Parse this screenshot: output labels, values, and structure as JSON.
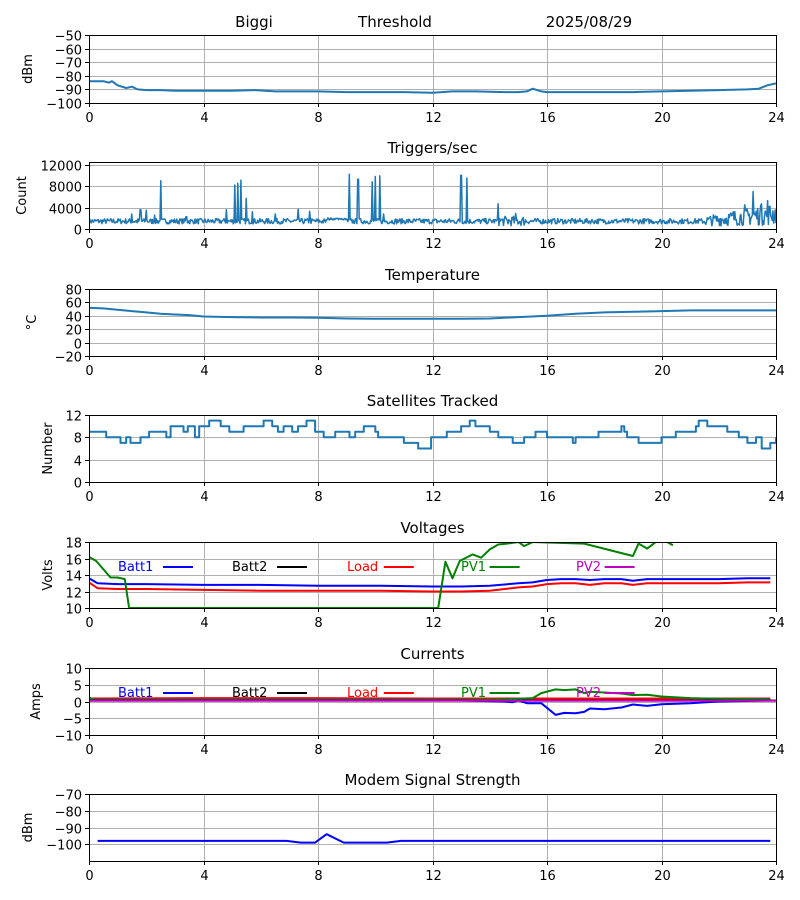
{
  "header": {
    "station": "Biggi",
    "mode": "Threshold",
    "date": "2025/08/29"
  },
  "chart_data": [
    {
      "id": "signal",
      "type": "line",
      "title": "",
      "xlabel": "",
      "ylabel": "dBm",
      "xlim": [
        0,
        24
      ],
      "ylim": [
        -100,
        -50
      ],
      "xticks": [
        "0",
        "4",
        "8",
        "12",
        "16",
        "20",
        "24"
      ],
      "yticks": [
        "−50",
        "−60",
        "−70",
        "−80",
        "−90",
        "−100"
      ],
      "ytick_values": [
        -50,
        -60,
        -70,
        -80,
        -90,
        -100
      ],
      "grid": true,
      "series": [
        {
          "name": "signal",
          "color": "#1f77b4",
          "x": [
            0,
            0.5,
            0.7,
            0.8,
            1.0,
            1.3,
            1.5,
            1.7,
            2.0,
            2.5,
            3.0,
            4.0,
            5.0,
            5.8,
            6.5,
            8.0,
            9.0,
            10.0,
            11.0,
            12.0,
            12.7,
            13.5,
            14.5,
            15.0,
            15.3,
            15.5,
            15.8,
            16.0,
            17.0,
            18.0,
            19.0,
            20.0,
            21.0,
            22.0,
            23.0,
            23.4,
            23.7,
            24.0
          ],
          "y": [
            -84,
            -84,
            -85,
            -84,
            -87,
            -89,
            -88,
            -90,
            -90.5,
            -90.5,
            -91,
            -91,
            -91,
            -90.5,
            -91.5,
            -91.5,
            -92,
            -92,
            -92,
            -92.5,
            -91.5,
            -91.5,
            -92,
            -92,
            -91.5,
            -89.5,
            -91.5,
            -92,
            -92,
            -92,
            -92,
            -91.5,
            -91,
            -90.5,
            -90,
            -89.5,
            -87,
            -85.5
          ]
        }
      ]
    },
    {
      "id": "triggers",
      "type": "line",
      "title": "Triggers/sec",
      "xlabel": "",
      "ylabel": "Count",
      "xlim": [
        0,
        24
      ],
      "ylim": [
        0,
        12500
      ],
      "xticks": [
        "0",
        "4",
        "8",
        "12",
        "16",
        "20",
        "24"
      ],
      "yticks": [
        "12000",
        "8000",
        "4000",
        "0"
      ],
      "ytick_values": [
        12000,
        8000,
        4000,
        0
      ],
      "grid": true,
      "series": [
        {
          "name": "triggers",
          "color": "#1f77b4",
          "baseline": 1400,
          "spikes": [
            {
              "x": 1.5,
              "y": 2800
            },
            {
              "x": 1.8,
              "y": 3600
            },
            {
              "x": 2.0,
              "y": 3500
            },
            {
              "x": 2.3,
              "y": 2600
            },
            {
              "x": 2.5,
              "y": 9000
            },
            {
              "x": 3.4,
              "y": 2300
            },
            {
              "x": 4.8,
              "y": 3600
            },
            {
              "x": 5.1,
              "y": 8200
            },
            {
              "x": 5.2,
              "y": 8500
            },
            {
              "x": 5.3,
              "y": 9100
            },
            {
              "x": 5.5,
              "y": 5700
            },
            {
              "x": 5.7,
              "y": 3200
            },
            {
              "x": 6.5,
              "y": 2800
            },
            {
              "x": 7.3,
              "y": 3700
            },
            {
              "x": 7.7,
              "y": 3300
            },
            {
              "x": 9.1,
              "y": 10200
            },
            {
              "x": 9.4,
              "y": 9300
            },
            {
              "x": 9.9,
              "y": 8800
            },
            {
              "x": 10.0,
              "y": 9800
            },
            {
              "x": 10.15,
              "y": 9900
            },
            {
              "x": 10.3,
              "y": 2800
            },
            {
              "x": 13.0,
              "y": 10000
            },
            {
              "x": 13.2,
              "y": 9500
            },
            {
              "x": 14.3,
              "y": 4700
            },
            {
              "x": 14.9,
              "y": 2900
            },
            {
              "x": 22.5,
              "y": 3200
            },
            {
              "x": 22.9,
              "y": 4500
            },
            {
              "x": 23.2,
              "y": 7000
            },
            {
              "x": 23.5,
              "y": 4700
            },
            {
              "x": 23.7,
              "y": 5300
            }
          ]
        }
      ]
    },
    {
      "id": "temperature",
      "type": "line",
      "title": "Temperature",
      "xlabel": "",
      "ylabel": "°C",
      "xlim": [
        0,
        24
      ],
      "ylim": [
        -20,
        80
      ],
      "xticks": [
        "0",
        "4",
        "8",
        "12",
        "16",
        "20",
        "24"
      ],
      "yticks": [
        "80",
        "60",
        "40",
        "20",
        "0",
        "−20"
      ],
      "ytick_values": [
        80,
        60,
        40,
        20,
        0,
        -20
      ],
      "grid": true,
      "series": [
        {
          "name": "temperature",
          "color": "#1f77b4",
          "x": [
            0,
            0.5,
            1,
            1.5,
            2,
            2.5,
            3,
            3.5,
            4,
            5,
            6,
            7,
            8,
            9,
            10,
            11,
            12,
            13,
            14,
            15,
            16,
            17,
            18,
            19,
            20,
            21,
            22,
            23,
            24
          ],
          "y": [
            52,
            51,
            49,
            47,
            45,
            43,
            42,
            41,
            39,
            38,
            37.5,
            37.5,
            37,
            36,
            35.5,
            35.5,
            35.5,
            35.5,
            36,
            38,
            40,
            43,
            45,
            46,
            47,
            48,
            48,
            48,
            48
          ]
        }
      ]
    },
    {
      "id": "satellites",
      "type": "line",
      "title": "Satellites Tracked",
      "xlabel": "",
      "ylabel": "Number",
      "xlim": [
        0,
        24
      ],
      "ylim": [
        0,
        12
      ],
      "xticks": [
        "0",
        "4",
        "8",
        "12",
        "16",
        "20",
        "24"
      ],
      "yticks": [
        "12",
        "8",
        "4",
        "0"
      ],
      "ytick_values": [
        12,
        8,
        4,
        0
      ],
      "grid": true,
      "series": [
        {
          "name": "satellites",
          "color": "#1f77b4",
          "step": true,
          "x": [
            0,
            0.6,
            1.1,
            1.3,
            1.45,
            1.8,
            2.1,
            2.7,
            2.85,
            3.3,
            3.45,
            3.7,
            3.85,
            4.2,
            4.6,
            4.9,
            5.4,
            6.1,
            6.4,
            6.6,
            6.8,
            7.1,
            7.3,
            7.6,
            7.9,
            8.2,
            8.6,
            9.1,
            9.3,
            9.6,
            10.0,
            10.1,
            10.7,
            11.0,
            11.3,
            11.5,
            11.95,
            12.5,
            13.0,
            13.3,
            13.5,
            14.0,
            14.3,
            14.8,
            15.2,
            15.6,
            16.0,
            16.9,
            17.0,
            17.8,
            18.6,
            18.7,
            18.8,
            19.2,
            19.8,
            20.0,
            20.5,
            21.2,
            21.3,
            21.6,
            22.3,
            22.7,
            23.0,
            23.3,
            23.5,
            23.8,
            24.0
          ],
          "y": [
            9,
            8,
            7,
            8,
            7,
            8,
            9,
            8,
            10,
            9,
            10,
            8,
            10,
            11,
            10,
            9,
            10,
            11,
            10,
            9,
            10,
            9,
            10,
            11,
            9,
            8,
            9,
            8,
            9,
            10,
            9,
            8,
            8,
            7,
            7,
            6,
            8,
            9,
            10,
            11,
            10,
            9,
            8,
            7,
            8,
            9,
            8,
            7,
            8,
            9,
            10,
            9,
            8,
            7,
            7,
            8,
            9,
            10,
            11,
            10,
            9,
            8,
            7,
            8,
            6,
            7,
            8
          ]
        }
      ]
    },
    {
      "id": "voltages",
      "type": "line",
      "title": "Voltages",
      "xlabel": "",
      "ylabel": "Volts",
      "xlim": [
        0,
        24
      ],
      "ylim": [
        10,
        18
      ],
      "xticks": [
        "0",
        "4",
        "8",
        "12",
        "16",
        "20",
        "24"
      ],
      "yticks": [
        "18",
        "16",
        "14",
        "12",
        "10"
      ],
      "ytick_values": [
        18,
        16,
        14,
        12,
        10
      ],
      "grid": true,
      "legend_position": "top-inside",
      "legend": [
        {
          "label": "Batt1",
          "color": "#0000ff"
        },
        {
          "label": "Batt2",
          "color": "#000000"
        },
        {
          "label": "Load",
          "color": "#ff0000"
        },
        {
          "label": "PV1",
          "color": "#008000"
        },
        {
          "label": "PV2",
          "color": "#bf00bf"
        }
      ],
      "series": [
        {
          "name": "Batt1",
          "color": "#0000ff",
          "x": [
            0,
            0.3,
            1,
            2,
            4,
            6,
            8,
            10,
            12,
            13,
            14,
            15,
            15.5,
            16,
            16.5,
            17,
            17.5,
            18,
            18.6,
            19,
            19.5,
            20,
            21,
            22,
            23,
            23.8
          ],
          "y": [
            13.6,
            13.0,
            12.9,
            12.9,
            12.8,
            12.8,
            12.7,
            12.7,
            12.6,
            12.6,
            12.7,
            13.0,
            13.1,
            13.4,
            13.5,
            13.5,
            13.4,
            13.5,
            13.5,
            13.3,
            13.5,
            13.5,
            13.5,
            13.5,
            13.6,
            13.6
          ]
        },
        {
          "name": "Load",
          "color": "#ff0000",
          "x": [
            0,
            0.3,
            1,
            2,
            4,
            6,
            8,
            10,
            12,
            13,
            14,
            15,
            15.5,
            16,
            16.5,
            17,
            17.5,
            18,
            18.6,
            19,
            19.5,
            20,
            21,
            22,
            23,
            23.8
          ],
          "y": [
            13.1,
            12.4,
            12.3,
            12.3,
            12.2,
            12.1,
            12.1,
            12.1,
            12.0,
            12.0,
            12.1,
            12.5,
            12.6,
            12.9,
            13.0,
            13.0,
            12.8,
            13.0,
            13.0,
            12.8,
            13.0,
            13.0,
            13.0,
            13.0,
            13.1,
            13.1
          ]
        },
        {
          "name": "PV1",
          "color": "#008000",
          "x": [
            0,
            0.25,
            0.75,
            1.0,
            1.25,
            1.4,
            12.2,
            12.45,
            12.7,
            12.95,
            13.4,
            13.7,
            14.0,
            14.3,
            14.6,
            15.0,
            15.2,
            15.5,
            17.3,
            19.0,
            19.2,
            19.5,
            19.8,
            20.2,
            20.4
          ],
          "y": [
            16.2,
            15.7,
            13.7,
            13.7,
            13.5,
            10.0,
            10.0,
            15.6,
            13.6,
            15.7,
            16.5,
            16.1,
            17.1,
            17.7,
            17.8,
            18.0,
            17.5,
            18.0,
            17.8,
            16.3,
            17.8,
            17.2,
            18.0,
            18.0,
            17.6
          ]
        }
      ]
    },
    {
      "id": "currents",
      "type": "line",
      "title": "Currents",
      "xlabel": "",
      "ylabel": "Amps",
      "xlim": [
        0,
        24
      ],
      "ylim": [
        -10,
        10
      ],
      "xticks": [
        "0",
        "4",
        "8",
        "12",
        "16",
        "20",
        "24"
      ],
      "yticks": [
        "10",
        "5",
        "0",
        "−5",
        "−10"
      ],
      "ytick_values": [
        10,
        5,
        0,
        -5,
        -10
      ],
      "grid": true,
      "legend_position": "top-inside",
      "legend": [
        {
          "label": "Batt1",
          "color": "#0000ff"
        },
        {
          "label": "Batt2",
          "color": "#000000"
        },
        {
          "label": "Load",
          "color": "#ff0000"
        },
        {
          "label": "PV1",
          "color": "#008000"
        },
        {
          "label": "PV2",
          "color": "#bf00bf"
        }
      ],
      "series": [
        {
          "name": "Batt2",
          "color": "#000000",
          "x": [
            0,
            24
          ],
          "y": [
            0.3,
            0.3
          ]
        },
        {
          "name": "Load",
          "color": "#ff0000",
          "x": [
            0,
            4,
            8,
            12,
            16,
            20,
            23.8
          ],
          "y": [
            0.9,
            1.0,
            1.0,
            0.9,
            0.9,
            0.9,
            0.9
          ]
        },
        {
          "name": "PV1",
          "color": "#008000",
          "x": [
            0,
            0.2,
            14,
            15,
            15.5,
            15.8,
            16.3,
            16.6,
            17.0,
            17.3,
            17.5,
            18.0,
            18.6,
            19.0,
            19.5,
            20.0,
            21.0,
            22.0,
            23.8
          ],
          "y": [
            1.2,
            0.5,
            0.5,
            0.8,
            1.0,
            2.5,
            3.6,
            3.4,
            3.6,
            2.5,
            2.9,
            2.7,
            2.4,
            1.9,
            2.0,
            1.5,
            1.0,
            0.8,
            0.7
          ]
        },
        {
          "name": "Batt1",
          "color": "#0000ff",
          "x": [
            0,
            13,
            14.5,
            14.8,
            15.0,
            15.3,
            15.8,
            16.3,
            16.6,
            17.0,
            17.3,
            17.5,
            18.0,
            18.6,
            19.0,
            19.5,
            20.0,
            21.0,
            22.0,
            23.8
          ],
          "y": [
            0.3,
            0.3,
            0.0,
            -0.2,
            0.3,
            -0.5,
            -0.5,
            -4.0,
            -3.4,
            -3.5,
            -3.1,
            -2.1,
            -2.3,
            -1.8,
            -0.9,
            -1.3,
            -0.8,
            -0.5,
            0.0,
            0.3
          ]
        },
        {
          "name": "PV2",
          "color": "#bf00bf",
          "x": [
            0,
            24
          ],
          "y": [
            0.2,
            0.2
          ]
        }
      ]
    },
    {
      "id": "modem",
      "type": "line",
      "title": "Modem Signal Strength",
      "xlabel": "",
      "ylabel": "dBm",
      "xlim": [
        0,
        24
      ],
      "ylim": [
        -110,
        -70
      ],
      "xticks": [
        "0",
        "4",
        "8",
        "12",
        "16",
        "20",
        "24"
      ],
      "yticks": [
        "−70",
        "−80",
        "−90",
        "−100"
      ],
      "ytick_values": [
        -70,
        -80,
        -90,
        -100
      ],
      "grid": true,
      "series": [
        {
          "name": "modem",
          "color": "#0000ff",
          "x": [
            0.3,
            6.9,
            7.4,
            7.9,
            8.3,
            8.9,
            10.4,
            10.9,
            23.8
          ],
          "y": [
            -98,
            -98,
            -99,
            -99,
            -94,
            -99,
            -99,
            -98,
            -98
          ]
        }
      ]
    }
  ]
}
